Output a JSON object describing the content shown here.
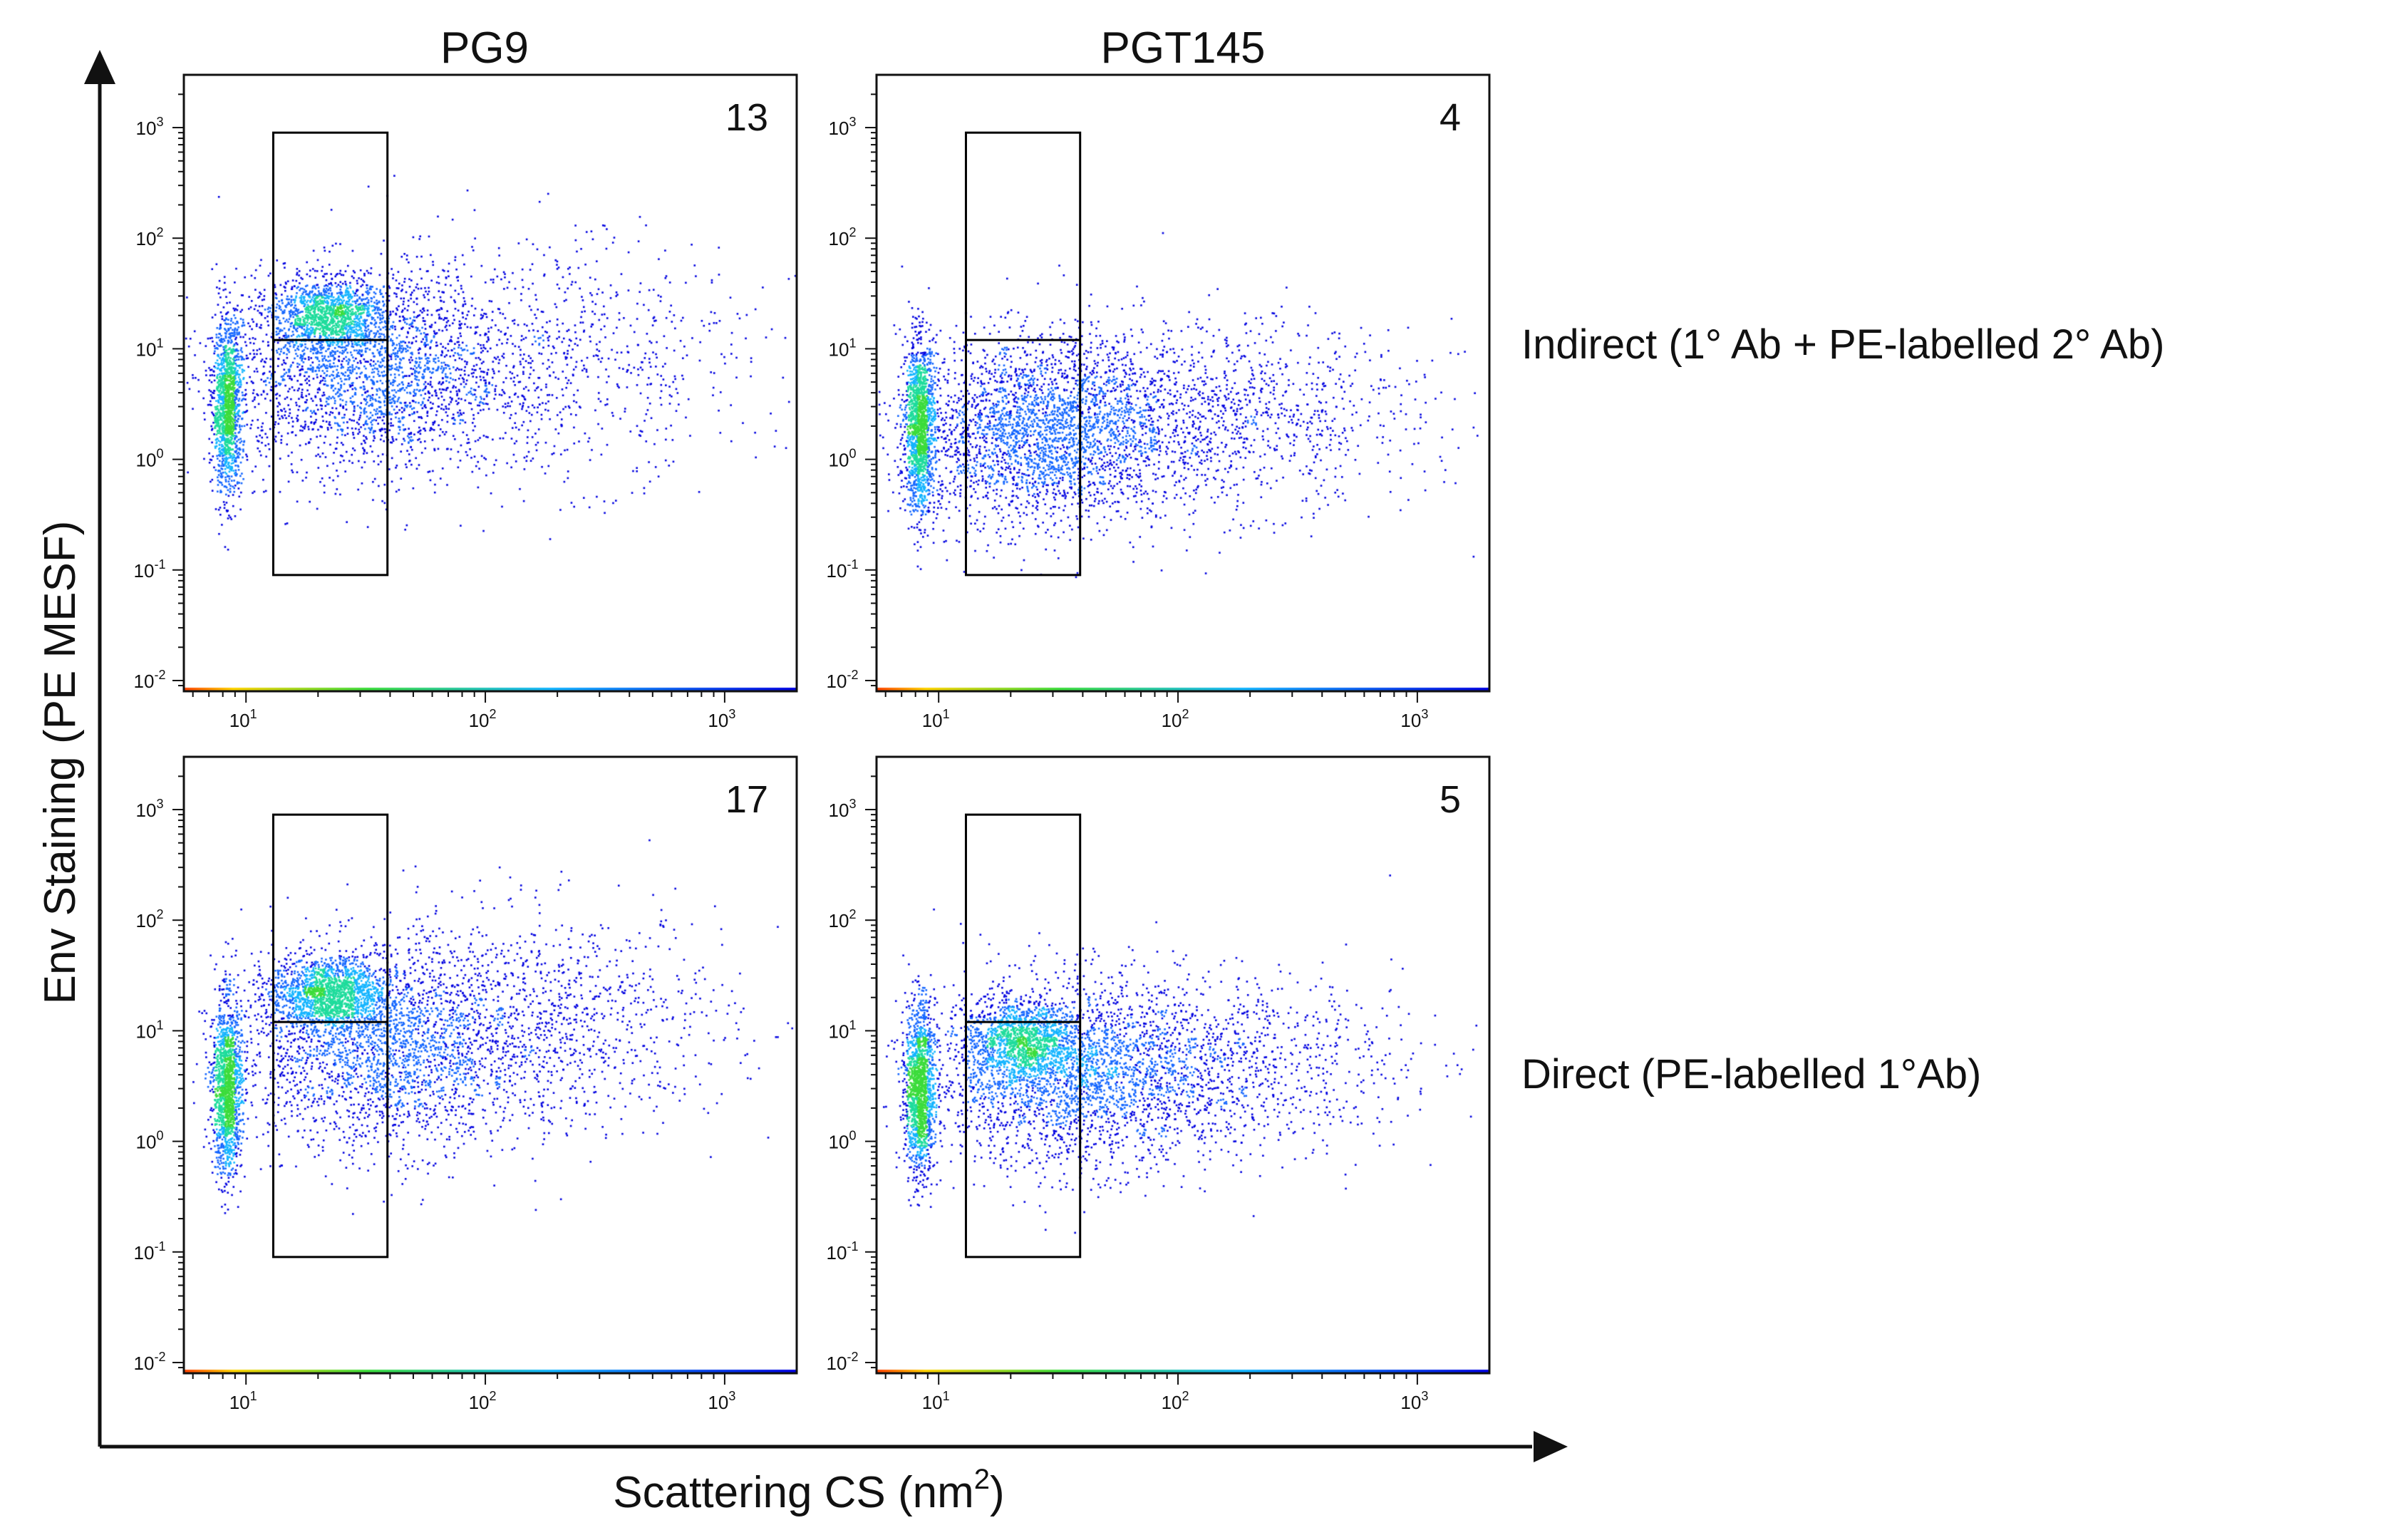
{
  "figure": {
    "y_axis_label": "Env Staining (PE MESF)",
    "x_axis_label": "Scattering CS (nm",
    "x_axis_label_sup": "2",
    "x_axis_label_end": ")",
    "column_titles": [
      "PG9",
      "PGT145"
    ],
    "row_labels": [
      "Indirect (1° Ab + PE-labelled 2° Ab)",
      "Direct (PE-labelled 1°Ab)"
    ],
    "axis_colors": {
      "axis": "#111111",
      "gate": "#000000"
    },
    "density_colors": [
      "#0000e0",
      "#1466ff",
      "#14b4ff",
      "#1edc9c",
      "#3cdc3c"
    ]
  },
  "chart_data": [
    {
      "type": "scatter",
      "title": "PG9",
      "row": "Indirect (1° Ab + PE-labelled 2° Ab)",
      "xscale": "log",
      "yscale": "log",
      "xlim": [
        5.5,
        2000
      ],
      "ylim": [
        0.008,
        3000
      ],
      "xticks": [
        "10",
        "10",
        "10"
      ],
      "xtick_exps": [
        "1",
        "2",
        "3"
      ],
      "yticks": [
        "10",
        "10",
        "10",
        "10",
        "10",
        "10"
      ],
      "ytick_exps": [
        "-2",
        "-1",
        "0",
        "1",
        "2",
        "3"
      ],
      "gate_percent": "13",
      "gates": [
        {
          "x": [
            13,
            39
          ],
          "y": [
            0.09,
            900
          ]
        },
        {
          "x": [
            13,
            39
          ],
          "y": [
            12,
            12
          ]
        }
      ],
      "populations": [
        {
          "n": 1400,
          "cx": 8.3,
          "cy": 3,
          "sx": 0.03,
          "sy": 0.38
        },
        {
          "n": 1300,
          "cx": 22,
          "cy": 20,
          "sx": 0.12,
          "sy": 0.16
        },
        {
          "n": 2200,
          "cx": 30,
          "cy": 6,
          "sx": 0.3,
          "sy": 0.45
        },
        {
          "n": 1000,
          "cx": 150,
          "cy": 8,
          "sx": 0.45,
          "sy": 0.55
        }
      ]
    },
    {
      "type": "scatter",
      "title": "PGT145",
      "row": "Indirect (1° Ab + PE-labelled 2° Ab)",
      "xscale": "log",
      "yscale": "log",
      "xlim": [
        5.5,
        2000
      ],
      "ylim": [
        0.008,
        3000
      ],
      "xticks": [
        "10",
        "10",
        "10"
      ],
      "xtick_exps": [
        "1",
        "2",
        "3"
      ],
      "yticks": [
        "10",
        "10",
        "10",
        "10",
        "10",
        "10"
      ],
      "ytick_exps": [
        "-2",
        "-1",
        "0",
        "1",
        "2",
        "3"
      ],
      "gate_percent": "4",
      "gates": [
        {
          "x": [
            13,
            39
          ],
          "y": [
            0.09,
            900
          ]
        },
        {
          "x": [
            13,
            39
          ],
          "y": [
            12,
            12
          ]
        }
      ],
      "populations": [
        {
          "n": 1500,
          "cx": 8.3,
          "cy": 2,
          "sx": 0.03,
          "sy": 0.38
        },
        {
          "n": 2600,
          "cx": 25,
          "cy": 1.8,
          "sx": 0.28,
          "sy": 0.42
        },
        {
          "n": 1400,
          "cx": 120,
          "cy": 2.5,
          "sx": 0.45,
          "sy": 0.42
        }
      ]
    },
    {
      "type": "scatter",
      "title": "PG9",
      "row": "Direct (PE-labelled 1°Ab)",
      "xscale": "log",
      "yscale": "log",
      "xlim": [
        5.5,
        2000
      ],
      "ylim": [
        0.008,
        3000
      ],
      "xticks": [
        "10",
        "10",
        "10"
      ],
      "xtick_exps": [
        "1",
        "2",
        "3"
      ],
      "yticks": [
        "10",
        "10",
        "10",
        "10",
        "10",
        "10"
      ],
      "ytick_exps": [
        "-2",
        "-1",
        "0",
        "1",
        "2",
        "3"
      ],
      "gate_percent": "17",
      "gates": [
        {
          "x": [
            13,
            39
          ],
          "y": [
            0.09,
            900
          ]
        },
        {
          "x": [
            13,
            39
          ],
          "y": [
            12,
            12
          ]
        }
      ],
      "populations": [
        {
          "n": 1500,
          "cx": 8.3,
          "cy": 3,
          "sx": 0.03,
          "sy": 0.38
        },
        {
          "n": 1500,
          "cx": 22,
          "cy": 22,
          "sx": 0.12,
          "sy": 0.16
        },
        {
          "n": 2200,
          "cx": 35,
          "cy": 7,
          "sx": 0.3,
          "sy": 0.45
        },
        {
          "n": 1200,
          "cx": 150,
          "cy": 12,
          "sx": 0.42,
          "sy": 0.5
        }
      ]
    },
    {
      "type": "scatter",
      "title": "PGT145",
      "row": "Direct (PE-labelled 1°Ab)",
      "xscale": "log",
      "yscale": "log",
      "xlim": [
        5.5,
        2000
      ],
      "ylim": [
        0.008,
        3000
      ],
      "xticks": [
        "10",
        "10",
        "10"
      ],
      "xtick_exps": [
        "1",
        "2",
        "3"
      ],
      "yticks": [
        "10",
        "10",
        "10",
        "10",
        "10",
        "10"
      ],
      "ytick_exps": [
        "-2",
        "-1",
        "0",
        "1",
        "2",
        "3"
      ],
      "gate_percent": "5",
      "gates": [
        {
          "x": [
            13,
            39
          ],
          "y": [
            0.09,
            900
          ]
        },
        {
          "x": [
            13,
            39
          ],
          "y": [
            12,
            12
          ]
        }
      ],
      "populations": [
        {
          "n": 1500,
          "cx": 8.3,
          "cy": 3,
          "sx": 0.03,
          "sy": 0.38
        },
        {
          "n": 1200,
          "cx": 22,
          "cy": 8,
          "sx": 0.12,
          "sy": 0.18
        },
        {
          "n": 2200,
          "cx": 35,
          "cy": 4,
          "sx": 0.3,
          "sy": 0.42
        },
        {
          "n": 1200,
          "cx": 120,
          "cy": 5,
          "sx": 0.42,
          "sy": 0.4
        }
      ]
    }
  ]
}
